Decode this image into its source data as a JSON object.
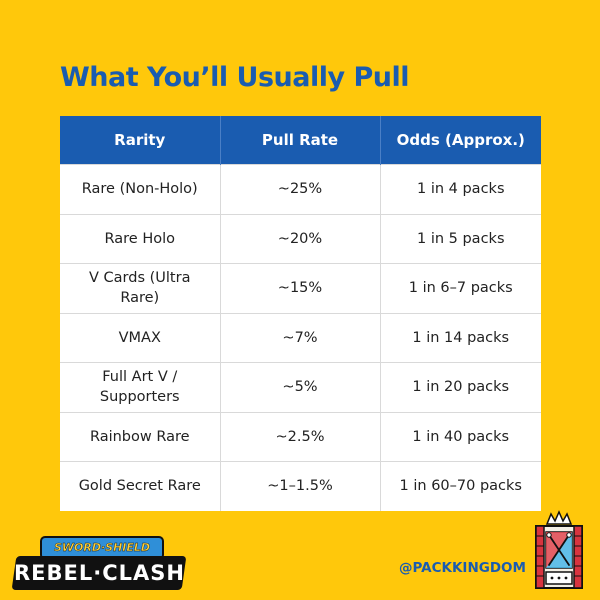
{
  "title": "What You’ll Usually Pull",
  "table": {
    "headers": [
      "Rarity",
      "Pull Rate",
      "Odds (Approx.)"
    ],
    "rows": [
      [
        "Rare (Non-Holo)",
        "~25%",
        "1 in 4 packs"
      ],
      [
        "Rare Holo",
        "~20%",
        "1 in 5 packs"
      ],
      [
        "V Cards (Ultra Rare)",
        "~15%",
        "1 in 6–7 packs"
      ],
      [
        "VMAX",
        "~7%",
        "1 in 14 packs"
      ],
      [
        "Full Art V / Supporters",
        "~5%",
        "1 in 20 packs"
      ],
      [
        "Rainbow Rare",
        "~2.5%",
        "1 in 40 packs"
      ],
      [
        "Gold Secret Rare",
        "~1–1.5%",
        "1 in 60–70 packs"
      ]
    ]
  },
  "logo": {
    "top_text": "SWORD·SHIELD",
    "main_text": "REBEL·CLASH"
  },
  "handle": "@PACKKINGDOM",
  "colors": {
    "background": "#FFC80B",
    "accent_blue": "#1A5CB0",
    "header_bg": "#1A5CB0"
  },
  "icons": {
    "brand_badge": "crown-badge-icon"
  }
}
